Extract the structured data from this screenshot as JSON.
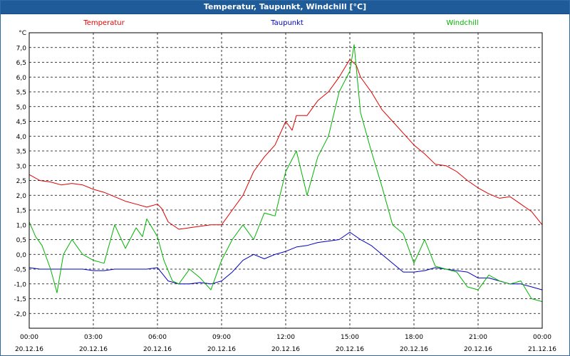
{
  "window": {
    "title": "Temperatur, Taupunkt, Windchill [°C]"
  },
  "chart_data": {
    "type": "line",
    "title": "Temperatur, Taupunkt, Windchill [°C]",
    "ylabel": "°C",
    "ylim": [
      -2.5,
      7.5
    ],
    "yticks": [
      "7,0",
      "6,5",
      "6,0",
      "5,5",
      "5,0",
      "4,5",
      "4,0",
      "3,5",
      "3,0",
      "2,5",
      "2,0",
      "1,5",
      "1,0",
      "0,5",
      "0,0",
      "-0,5",
      "-1,0",
      "-1,5",
      "-2,0"
    ],
    "xticks": [
      {
        "time": "00:00",
        "date": "20.12.16"
      },
      {
        "time": "03:00",
        "date": "20.12.16"
      },
      {
        "time": "06:00",
        "date": "20.12.16"
      },
      {
        "time": "09:00",
        "date": "20.12.16"
      },
      {
        "time": "12:00",
        "date": "20.12.16"
      },
      {
        "time": "15:00",
        "date": "20.12.16"
      },
      {
        "time": "18:00",
        "date": "20.12.16"
      },
      {
        "time": "21:00",
        "date": "20.12.16"
      },
      {
        "time": "00:00",
        "date": "21.12.16"
      }
    ],
    "x_unit_hours_from": "20.12.16 00:00",
    "grid": true,
    "series": [
      {
        "name": "Temperatur",
        "color": "#e00000",
        "points": [
          [
            0,
            2.7
          ],
          [
            0.5,
            2.5
          ],
          [
            1,
            2.45
          ],
          [
            1.5,
            2.35
          ],
          [
            2,
            2.4
          ],
          [
            2.5,
            2.35
          ],
          [
            3,
            2.2
          ],
          [
            3.5,
            2.1
          ],
          [
            4,
            1.95
          ],
          [
            4.5,
            1.8
          ],
          [
            5,
            1.7
          ],
          [
            5.5,
            1.6
          ],
          [
            6,
            1.7
          ],
          [
            6.2,
            1.55
          ],
          [
            6.5,
            1.1
          ],
          [
            7,
            0.85
          ],
          [
            7.5,
            0.9
          ],
          [
            8,
            0.95
          ],
          [
            8.5,
            1.0
          ],
          [
            9,
            1.0
          ],
          [
            9.5,
            1.5
          ],
          [
            10,
            2.0
          ],
          [
            10.5,
            2.8
          ],
          [
            11,
            3.3
          ],
          [
            11.5,
            3.7
          ],
          [
            12,
            4.5
          ],
          [
            12.3,
            4.2
          ],
          [
            12.5,
            4.7
          ],
          [
            13,
            4.7
          ],
          [
            13.5,
            5.2
          ],
          [
            14,
            5.5
          ],
          [
            14.5,
            6.0
          ],
          [
            15,
            6.6
          ],
          [
            15.3,
            6.4
          ],
          [
            15.5,
            6.0
          ],
          [
            16,
            5.5
          ],
          [
            16.5,
            4.9
          ],
          [
            17,
            4.5
          ],
          [
            17.5,
            4.1
          ],
          [
            18,
            3.7
          ],
          [
            18.5,
            3.4
          ],
          [
            19,
            3.05
          ],
          [
            19.5,
            3.0
          ],
          [
            20,
            2.8
          ],
          [
            20.5,
            2.5
          ],
          [
            21,
            2.25
          ],
          [
            21.5,
            2.05
          ],
          [
            22,
            1.9
          ],
          [
            22.5,
            1.95
          ],
          [
            23,
            1.7
          ],
          [
            23.5,
            1.45
          ],
          [
            24,
            1.0
          ]
        ]
      },
      {
        "name": "Taupunkt",
        "color": "#0000c0",
        "points": [
          [
            0,
            -0.45
          ],
          [
            0.5,
            -0.5
          ],
          [
            1,
            -0.5
          ],
          [
            1.5,
            -0.5
          ],
          [
            2,
            -0.5
          ],
          [
            2.5,
            -0.5
          ],
          [
            3,
            -0.55
          ],
          [
            3.5,
            -0.55
          ],
          [
            4,
            -0.5
          ],
          [
            4.5,
            -0.5
          ],
          [
            5,
            -0.5
          ],
          [
            5.5,
            -0.5
          ],
          [
            6,
            -0.45
          ],
          [
            6.5,
            -0.9
          ],
          [
            7,
            -1.0
          ],
          [
            7.5,
            -1.0
          ],
          [
            8,
            -0.95
          ],
          [
            8.5,
            -1.0
          ],
          [
            9,
            -0.9
          ],
          [
            9.5,
            -0.6
          ],
          [
            10,
            -0.2
          ],
          [
            10.5,
            0.0
          ],
          [
            11,
            -0.15
          ],
          [
            11.5,
            0.0
          ],
          [
            12,
            0.1
          ],
          [
            12.5,
            0.25
          ],
          [
            13,
            0.3
          ],
          [
            13.5,
            0.4
          ],
          [
            14,
            0.45
          ],
          [
            14.5,
            0.5
          ],
          [
            15,
            0.75
          ],
          [
            15.5,
            0.5
          ],
          [
            16,
            0.3
          ],
          [
            16.5,
            0.0
          ],
          [
            17,
            -0.3
          ],
          [
            17.5,
            -0.6
          ],
          [
            18,
            -0.6
          ],
          [
            18.5,
            -0.55
          ],
          [
            19,
            -0.45
          ],
          [
            19.5,
            -0.5
          ],
          [
            20,
            -0.55
          ],
          [
            20.5,
            -0.6
          ],
          [
            21,
            -0.8
          ],
          [
            21.5,
            -0.8
          ],
          [
            22,
            -0.9
          ],
          [
            22.5,
            -1.0
          ],
          [
            23,
            -1.0
          ],
          [
            23.5,
            -1.1
          ],
          [
            24,
            -1.2
          ]
        ]
      },
      {
        "name": "Windchill",
        "color": "#00b400",
        "points": [
          [
            0,
            1.1
          ],
          [
            0.3,
            0.6
          ],
          [
            0.6,
            0.3
          ],
          [
            1,
            -0.5
          ],
          [
            1.3,
            -1.3
          ],
          [
            1.6,
            0.0
          ],
          [
            2,
            0.5
          ],
          [
            2.5,
            0.0
          ],
          [
            3,
            -0.2
          ],
          [
            3.5,
            -0.3
          ],
          [
            4,
            1.0
          ],
          [
            4.5,
            0.2
          ],
          [
            5,
            0.9
          ],
          [
            5.3,
            0.6
          ],
          [
            5.5,
            1.2
          ],
          [
            6,
            0.6
          ],
          [
            6.3,
            -0.2
          ],
          [
            6.7,
            -0.9
          ],
          [
            7,
            -1.0
          ],
          [
            7.5,
            -0.5
          ],
          [
            8,
            -0.8
          ],
          [
            8.5,
            -1.2
          ],
          [
            9,
            -0.2
          ],
          [
            9.5,
            0.5
          ],
          [
            10,
            1.0
          ],
          [
            10.5,
            0.5
          ],
          [
            11,
            1.4
          ],
          [
            11.5,
            1.3
          ],
          [
            12,
            2.8
          ],
          [
            12.5,
            3.5
          ],
          [
            13,
            2.0
          ],
          [
            13.5,
            3.3
          ],
          [
            14,
            4.0
          ],
          [
            14.5,
            5.5
          ],
          [
            15,
            6.2
          ],
          [
            15.2,
            7.1
          ],
          [
            15.5,
            4.8
          ],
          [
            16,
            3.5
          ],
          [
            16.5,
            2.3
          ],
          [
            17,
            1.0
          ],
          [
            17.5,
            0.7
          ],
          [
            18,
            -0.3
          ],
          [
            18.5,
            0.5
          ],
          [
            19,
            -0.4
          ],
          [
            19.5,
            -0.5
          ],
          [
            20,
            -0.6
          ],
          [
            20.5,
            -1.1
          ],
          [
            21,
            -1.2
          ],
          [
            21.5,
            -0.7
          ],
          [
            22,
            -0.9
          ],
          [
            22.5,
            -1.0
          ],
          [
            23,
            -0.9
          ],
          [
            23.5,
            -1.5
          ],
          [
            24,
            -1.6
          ]
        ]
      }
    ]
  }
}
